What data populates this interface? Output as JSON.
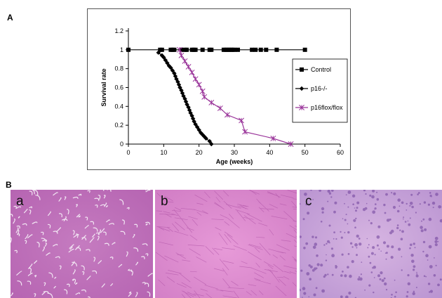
{
  "panel_a_label": "A",
  "panel_b_label": "B",
  "chart_data": {
    "type": "line",
    "xlabel": "Age (weeks)",
    "ylabel": "Survival rate",
    "xlim": [
      0,
      60
    ],
    "ylim": [
      0,
      1.2
    ],
    "xticks": [
      "0",
      "10",
      "20",
      "30",
      "40",
      "50",
      "60"
    ],
    "yticks": [
      "0",
      "0.2",
      "0.4",
      "0.6",
      "0.8",
      "1",
      "1.2"
    ],
    "grid": false,
    "legend_position": "right",
    "series": [
      {
        "name": "Control",
        "marker": "square",
        "color": "#000000",
        "x": [
          0,
          9,
          9.5,
          12,
          12.5,
          13,
          15,
          16,
          16.5,
          18,
          18.5,
          19,
          21,
          23,
          23.5,
          27,
          27.5,
          28,
          28.5,
          29,
          29.5,
          30,
          31,
          35,
          36,
          37.5,
          39,
          42,
          50
        ],
        "y": [
          1,
          1,
          1,
          1,
          1,
          1,
          1,
          1,
          1,
          1,
          1,
          1,
          1,
          1,
          1,
          1,
          1,
          1,
          1,
          1,
          1,
          1,
          1,
          1,
          1,
          1,
          1,
          1,
          1
        ]
      },
      {
        "name": "p16-/-",
        "marker": "diamond",
        "color": "#000000",
        "x": [
          8.5,
          9.5,
          10,
          10.5,
          11,
          11.5,
          12,
          12.5,
          13,
          13.3,
          13.6,
          14,
          14.3,
          14.6,
          15,
          15.3,
          15.6,
          16,
          16.3,
          16.6,
          17,
          17.3,
          17.6,
          18,
          18.3,
          18.6,
          19,
          19.5,
          20,
          20.5,
          21,
          21.5,
          22,
          23,
          23.5
        ],
        "y": [
          0.97,
          0.94,
          0.92,
          0.89,
          0.86,
          0.83,
          0.81,
          0.78,
          0.75,
          0.72,
          0.69,
          0.66,
          0.63,
          0.6,
          0.57,
          0.54,
          0.51,
          0.48,
          0.45,
          0.42,
          0.39,
          0.36,
          0.33,
          0.3,
          0.27,
          0.24,
          0.21,
          0.18,
          0.15,
          0.12,
          0.1,
          0.08,
          0.06,
          0.03,
          0
        ]
      },
      {
        "name": "p16flox/flox",
        "marker": "asterisk",
        "color": "#993399",
        "x": [
          14.5,
          15,
          16,
          17,
          18,
          19,
          20,
          21,
          21.5,
          23.5,
          26,
          28,
          32,
          33,
          41,
          46
        ],
        "y": [
          1,
          0.94,
          0.88,
          0.82,
          0.76,
          0.69,
          0.63,
          0.56,
          0.5,
          0.44,
          0.38,
          0.31,
          0.25,
          0.13,
          0.06,
          0
        ]
      }
    ]
  },
  "images": [
    {
      "label": "a"
    },
    {
      "label": "b"
    },
    {
      "label": "c"
    }
  ]
}
